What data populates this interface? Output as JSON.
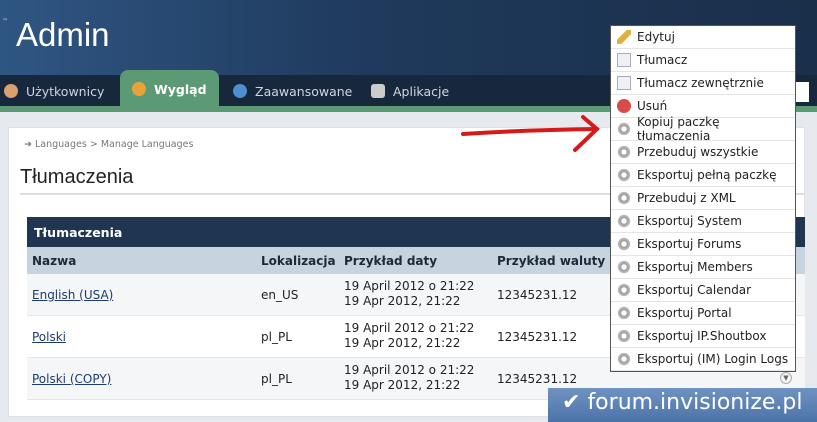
{
  "header": {
    "title": "Admin",
    "tm": "™"
  },
  "nav": {
    "tabs": [
      {
        "label": "Użytkownicy",
        "icon": "user-icon"
      },
      {
        "label": "Wygląd",
        "icon": "palette-icon",
        "active": true
      },
      {
        "label": "Zaawansowane",
        "icon": "help-icon"
      },
      {
        "label": "Aplikacje",
        "icon": "box-icon"
      }
    ]
  },
  "breadcrumb": {
    "items": [
      "Languages",
      "Manage Languages"
    ],
    "sep": ">"
  },
  "page": {
    "title": "Tłumaczenia"
  },
  "table": {
    "title": "Tłumaczenia",
    "columns": [
      "Nazwa",
      "Lokalizacja",
      "Przykład daty",
      "Przykład waluty"
    ],
    "rows": [
      {
        "name": "English (USA)",
        "locale": "en_US",
        "date1": "19 April 2012 o 21:22",
        "date2": "19 Apr 2012, 21:22",
        "currency": "12345231.12"
      },
      {
        "name": "Polski",
        "locale": "pl_PL",
        "date1": "19 April 2012 o 21:22",
        "date2": "19 Apr 2012, 21:22",
        "currency": "12345231.12"
      },
      {
        "name": "Polski (COPY)",
        "locale": "pl_PL",
        "date1": "19 April 2012 o 21:22",
        "date2": "19 Apr 2012, 21:22",
        "currency": "12345231.12"
      }
    ]
  },
  "menu": {
    "items": [
      {
        "label": "Edytuj",
        "icon": "pencil-icon"
      },
      {
        "label": "Tłumacz",
        "icon": "document-search-icon"
      },
      {
        "label": "Tłumacz zewnętrznie",
        "icon": "document-search-icon"
      },
      {
        "label": "Usuń",
        "icon": "delete-icon"
      },
      {
        "label": "Kopiuj paczkę tłumaczenia",
        "icon": "gear-icon"
      },
      {
        "label": "Przebuduj wszystkie",
        "icon": "gear-icon"
      },
      {
        "label": "Eksportuj pełną paczkę",
        "icon": "gear-icon"
      },
      {
        "label": "Przebuduj z XML",
        "icon": "gear-icon"
      },
      {
        "label": "Eksportuj System",
        "icon": "gear-icon"
      },
      {
        "label": "Eksportuj Forums",
        "icon": "gear-icon"
      },
      {
        "label": "Eksportuj Members",
        "icon": "gear-icon"
      },
      {
        "label": "Eksportuj Calendar",
        "icon": "gear-icon"
      },
      {
        "label": "Eksportuj Portal",
        "icon": "gear-icon"
      },
      {
        "label": "Eksportuj IP.Shoutbox",
        "icon": "gear-icon"
      },
      {
        "label": "Eksportuj (IM) Login Logs",
        "icon": "gear-icon"
      }
    ]
  },
  "watermark": "forum.invisionize.pl",
  "colors": {
    "header": "#1f3a5c",
    "nav_active": "#5b9a74",
    "table_head": "#1f3550",
    "arrow": "#d61a1a"
  }
}
